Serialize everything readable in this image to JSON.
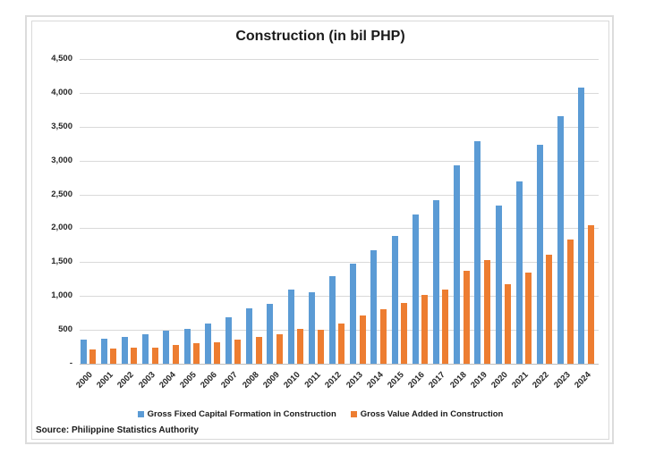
{
  "chart_data": {
    "type": "bar",
    "title": "Construction (in bil PHP)",
    "source": "Source: Philippine Statistics Authority",
    "categories": [
      "2000",
      "2001",
      "2002",
      "2003",
      "2004",
      "2005",
      "2006",
      "2007",
      "2008",
      "2009",
      "2010",
      "2011",
      "2012",
      "2013",
      "2014",
      "2015",
      "2016",
      "2017",
      "2018",
      "2019",
      "2020",
      "2021",
      "2022",
      "2023",
      "2024"
    ],
    "series": [
      {
        "name": "Gross Fixed Capital Formation in Construction",
        "color": "#5B9BD5",
        "values": [
          360,
          375,
          400,
          430,
          490,
          515,
          590,
          690,
          820,
          890,
          1090,
          1060,
          1290,
          1480,
          1680,
          1890,
          2210,
          2420,
          2930,
          3290,
          2330,
          2690,
          3230,
          3650,
          4080
        ]
      },
      {
        "name": "Gross Value Added in Construction",
        "color": "#ED7D31",
        "values": [
          215,
          225,
          232,
          242,
          278,
          300,
          315,
          360,
          400,
          435,
          515,
          500,
          600,
          715,
          805,
          900,
          1020,
          1100,
          1370,
          1535,
          1180,
          1345,
          1615,
          1830,
          2040
        ]
      }
    ],
    "ylim": [
      0,
      4500
    ],
    "y_tick_interval": 500,
    "y_tick_labels": [
      "4,500",
      "4,000",
      "3,500",
      "3,000",
      "2,500",
      "2,000",
      "1,500",
      "1,000",
      "500",
      "-"
    ],
    "grid": true,
    "legend_position": "bottom",
    "colors": {
      "gridline": "#D9D9D9",
      "axis_line": "#BFBFBF",
      "frame_border": "#D9D9D9",
      "title_text": "#1A1A1A"
    }
  }
}
